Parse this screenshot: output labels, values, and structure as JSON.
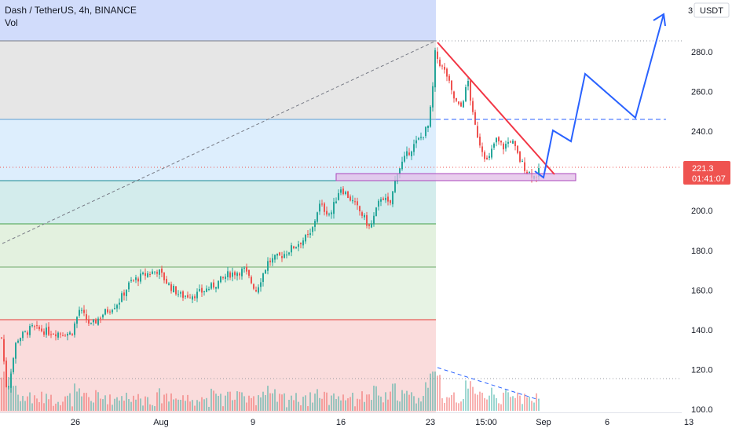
{
  "header": {
    "title": "Dash / TetherUS, 4h, BINANCE",
    "volume_label": "Vol"
  },
  "price_axis": {
    "currency_button": "USDT",
    "top_tick": "3",
    "ticks": [
      "280.0",
      "260.0",
      "240.0",
      "220.0",
      "200.0",
      "180.0",
      "160.0",
      "140.0",
      "120.0",
      "100.0"
    ],
    "range": [
      99,
      300
    ]
  },
  "time_axis": {
    "labels": [
      "26",
      "Aug",
      "9",
      "16",
      "23",
      "15:00",
      "Sep",
      "6",
      "13"
    ]
  },
  "last_price": {
    "price": "221.3",
    "countdown": "01:41:07",
    "color": "#ef5350"
  },
  "colors": {
    "up": "#26a69a",
    "down": "#ef5350",
    "projection": "#2962ff",
    "trendline": "#f23645"
  },
  "fib_levels": [
    285,
    246,
    216,
    193,
    172,
    145,
    99
  ]
}
